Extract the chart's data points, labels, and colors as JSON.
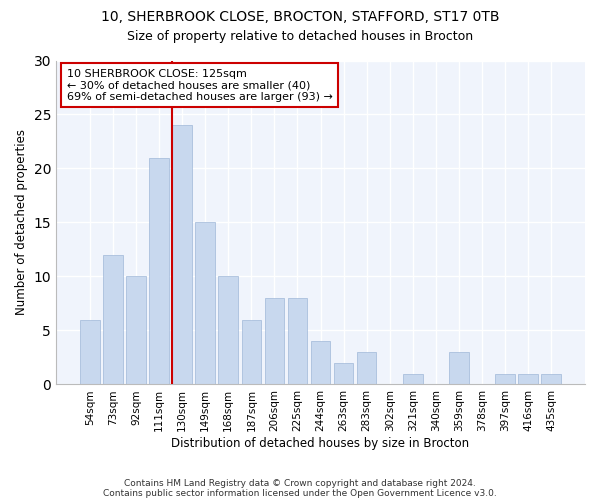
{
  "title1": "10, SHERBROOK CLOSE, BROCTON, STAFFORD, ST17 0TB",
  "title2": "Size of property relative to detached houses in Brocton",
  "xlabel": "Distribution of detached houses by size in Brocton",
  "ylabel": "Number of detached properties",
  "categories": [
    "54sqm",
    "73sqm",
    "92sqm",
    "111sqm",
    "130sqm",
    "149sqm",
    "168sqm",
    "187sqm",
    "206sqm",
    "225sqm",
    "244sqm",
    "263sqm",
    "283sqm",
    "302sqm",
    "321sqm",
    "340sqm",
    "359sqm",
    "378sqm",
    "397sqm",
    "416sqm",
    "435sqm"
  ],
  "values": [
    6,
    12,
    10,
    21,
    24,
    15,
    10,
    6,
    8,
    8,
    4,
    2,
    3,
    0,
    1,
    0,
    3,
    0,
    1,
    1,
    1
  ],
  "bar_color": "#c8d8ee",
  "bar_edge_color": "#a0b8d8",
  "marker_index": 4,
  "marker_label": "10 SHERBROOK CLOSE: 125sqm",
  "annotation_line1": "← 30% of detached houses are smaller (40)",
  "annotation_line2": "69% of semi-detached houses are larger (93) →",
  "vline_color": "#cc0000",
  "annotation_box_color": "#ffffff",
  "annotation_box_edge": "#cc0000",
  "ylim": [
    0,
    30
  ],
  "footer1": "Contains HM Land Registry data © Crown copyright and database right 2024.",
  "footer2": "Contains public sector information licensed under the Open Government Licence v3.0.",
  "background_color": "#ffffff",
  "plot_bg_color": "#f0f4fc"
}
